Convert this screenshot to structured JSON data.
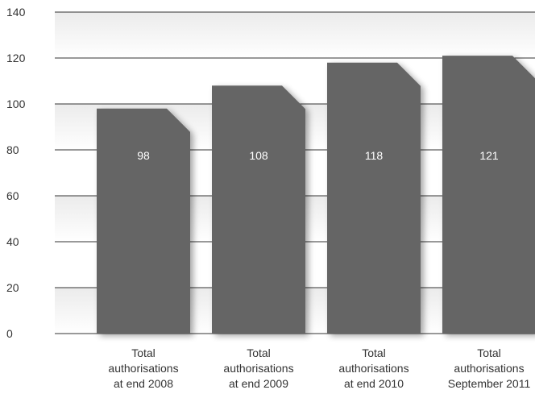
{
  "chart_data": {
    "type": "bar",
    "categories": [
      [
        "Total",
        "authorisations",
        "at end 2008"
      ],
      [
        "Total",
        "authorisations",
        "at end 2009"
      ],
      [
        "Total",
        "authorisations",
        "at end 2010"
      ],
      [
        "Total",
        "authorisations",
        "September 2011"
      ]
    ],
    "values": [
      98,
      108,
      118,
      121
    ],
    "value_labels": [
      "98",
      "108",
      "118",
      "121"
    ],
    "yticks": [
      "0",
      "20",
      "40",
      "60",
      "80",
      "100",
      "120",
      "140"
    ],
    "ylim": [
      0,
      140
    ],
    "grid": true,
    "title": "",
    "xlabel": "",
    "ylabel": "",
    "colors": {
      "bar": "#656565",
      "bar_shadow": "#c8c8c8",
      "grid": "#333333",
      "band": "#f0f0f0",
      "text": "#333333",
      "value_text": "#ffffff"
    }
  }
}
